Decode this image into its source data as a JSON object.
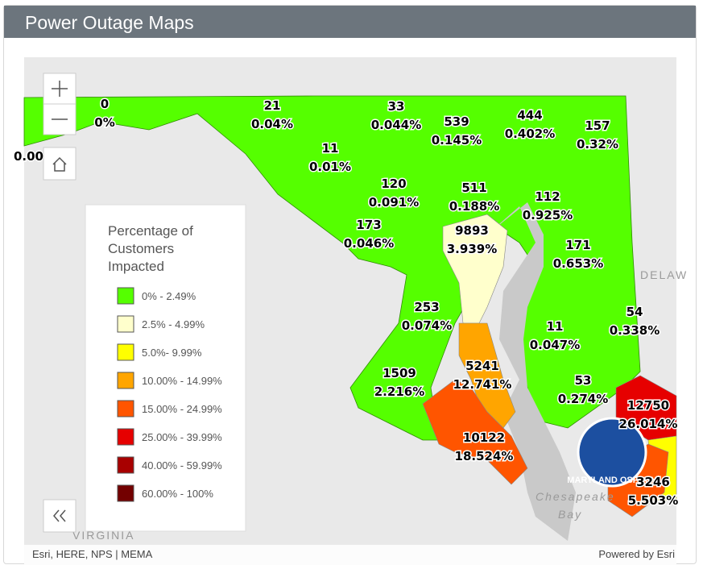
{
  "header": {
    "title": "Power Outage Maps"
  },
  "legend": {
    "title": "Percentage of Customers Impacted",
    "items": [
      {
        "label": "0% - 2.49%",
        "color": "#55ff00"
      },
      {
        "label": "2.5% - 4.99%",
        "color": "#ffffcc"
      },
      {
        "label": "5.0%- 9.99%",
        "color": "#ffff00"
      },
      {
        "label": "10.00% - 14.99%",
        "color": "#ffa500"
      },
      {
        "label": "15.00% - 24.99%",
        "color": "#ff5500"
      },
      {
        "label": "25.00% - 39.99%",
        "color": "#e60000"
      },
      {
        "label": "40.00% - 59.99%",
        "color": "#a80000"
      },
      {
        "label": "60.00% - 100%",
        "color": "#730000"
      }
    ]
  },
  "regions": [
    {
      "percent": "0.00%"
    },
    {
      "count": "0",
      "percent": "0%"
    },
    {
      "count": "21",
      "percent": "0.04%"
    },
    {
      "count": "33",
      "percent": "0.044%"
    },
    {
      "count": "539",
      "percent": "0.145%"
    },
    {
      "count": "444",
      "percent": "0.402%"
    },
    {
      "count": "157",
      "percent": "0.32%"
    },
    {
      "count": "11",
      "percent": "0.01%"
    },
    {
      "count": "120",
      "percent": "0.091%"
    },
    {
      "count": "511",
      "percent": "0.188%"
    },
    {
      "count": "112",
      "percent": "0.925%"
    },
    {
      "count": "173",
      "percent": "0.046%"
    },
    {
      "count": "9893",
      "percent": "3.939%"
    },
    {
      "count": "171",
      "percent": "0.653%"
    },
    {
      "count": "253",
      "percent": "0.074%"
    },
    {
      "count": "54",
      "percent": "0.338%"
    },
    {
      "count": "11",
      "percent": "0.047%"
    },
    {
      "count": "5241",
      "percent": "12.741%"
    },
    {
      "count": "1509",
      "percent": "2.216%"
    },
    {
      "count": "53",
      "percent": "0.274%"
    },
    {
      "count": "12750",
      "percent": "26.014%"
    },
    {
      "count": "10122",
      "percent": "18.524%"
    },
    {
      "count": "3246",
      "percent": "5.503%"
    }
  ],
  "map_labels": {
    "delaware": "DELAW",
    "virginia": "VIRGINIA",
    "bay_1": "Chesapeake",
    "bay_2": "Bay",
    "logo": "MARYLAND OSPREY"
  },
  "attribution": {
    "left": "Esri, HERE, NPS | MEMA",
    "right": "Powered by Esri"
  }
}
